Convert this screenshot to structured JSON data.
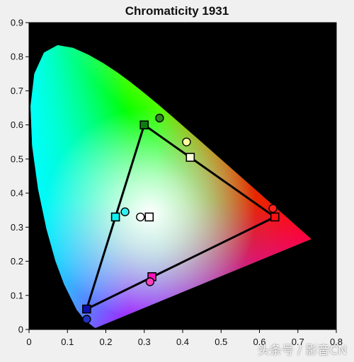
{
  "chart_data": {
    "type": "scatter",
    "title": "Chromaticity 1931",
    "xlabel": "",
    "ylabel": "",
    "xlim": [
      0,
      0.8
    ],
    "ylim": [
      0,
      0.9
    ],
    "x_ticks": [
      "0",
      "0.1",
      "0.2",
      "0.3",
      "0.4",
      "0.5",
      "0.6",
      "0.7",
      "0.8"
    ],
    "y_ticks": [
      "0",
      "0.1",
      "0.2",
      "0.3",
      "0.4",
      "0.5",
      "0.6",
      "0.7",
      "0.8",
      "0.9"
    ],
    "series": [
      {
        "marker": "square",
        "points": [
          {
            "x": 0.3,
            "y": 0.6,
            "color": "#0a7d10"
          },
          {
            "x": 0.42,
            "y": 0.505,
            "color": "#ffffe0"
          },
          {
            "x": 0.64,
            "y": 0.33,
            "color": "#ff1010"
          },
          {
            "x": 0.32,
            "y": 0.155,
            "color": "#ff10c0"
          },
          {
            "x": 0.15,
            "y": 0.06,
            "color": "#1010b0"
          },
          {
            "x": 0.225,
            "y": 0.33,
            "color": "#10f0f0"
          },
          {
            "x": 0.313,
            "y": 0.33,
            "color": "#ffffff"
          }
        ],
        "triangle": [
          [
            0.3,
            0.6
          ],
          [
            0.64,
            0.33
          ],
          [
            0.15,
            0.06
          ]
        ]
      },
      {
        "marker": "circle",
        "points": [
          {
            "x": 0.34,
            "y": 0.62,
            "color": "#2e8b20"
          },
          {
            "x": 0.41,
            "y": 0.55,
            "color": "#ffffa0"
          },
          {
            "x": 0.635,
            "y": 0.355,
            "color": "#ff2020"
          },
          {
            "x": 0.315,
            "y": 0.14,
            "color": "#ff40c0"
          },
          {
            "x": 0.15,
            "y": 0.03,
            "color": "#2030c0"
          },
          {
            "x": 0.25,
            "y": 0.345,
            "color": "#30f0f0"
          },
          {
            "x": 0.29,
            "y": 0.33,
            "color": "#ffffff"
          }
        ]
      }
    ]
  },
  "watermark": {
    "prefix": "头条号 / ",
    "text": "影音CN"
  }
}
